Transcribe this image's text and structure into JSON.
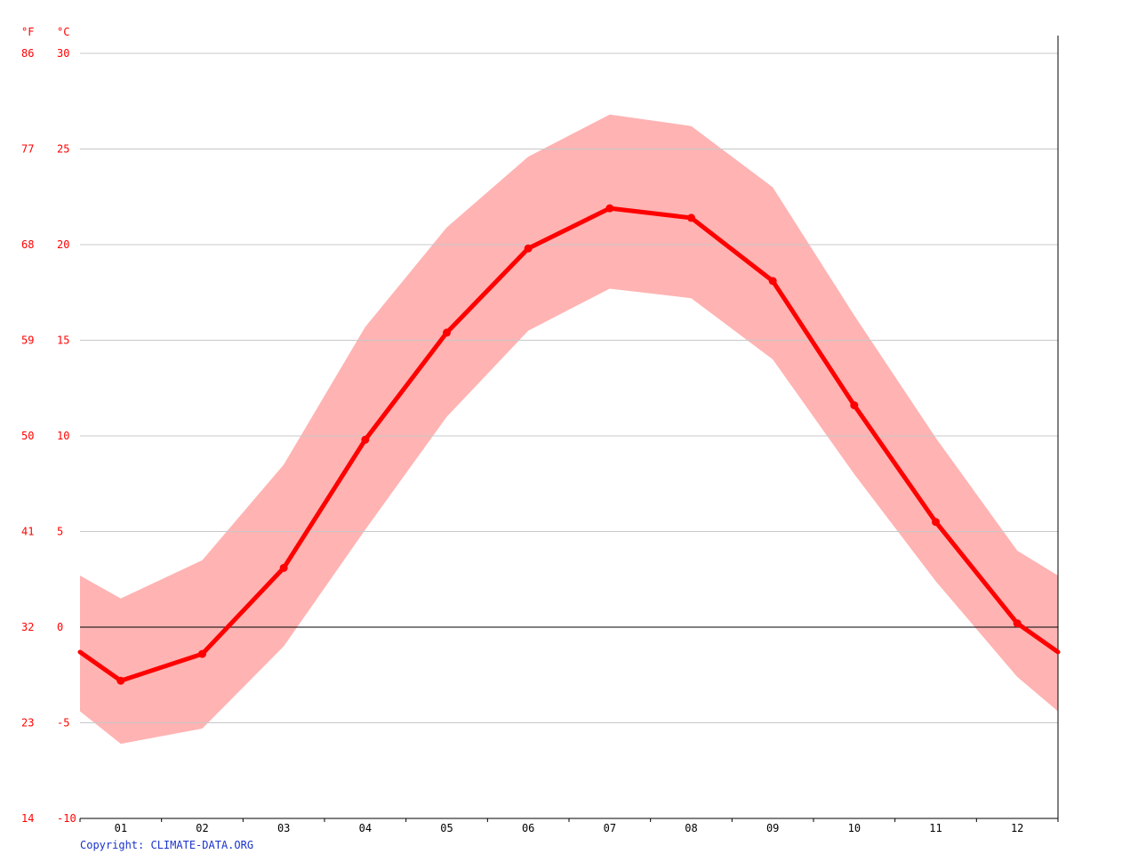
{
  "units": {
    "fahrenheit": "°F",
    "celsius": "°C"
  },
  "copyright": "Copyright: CLIMATE-DATA.ORG",
  "colors": {
    "line": "#ff0000",
    "band": "#ffb3b3",
    "grid": "#c8c8c8",
    "zero": "#000000",
    "copyright": "#1a33cc"
  },
  "chart_data": {
    "type": "line",
    "categories": [
      "01",
      "02",
      "03",
      "04",
      "05",
      "06",
      "07",
      "08",
      "09",
      "10",
      "11",
      "12"
    ],
    "y_ticks_c": [
      "30",
      "25",
      "20",
      "15",
      "10",
      "5",
      "0",
      "-5",
      "-10"
    ],
    "y_ticks_f": [
      "86",
      "77",
      "68",
      "59",
      "50",
      "41",
      "32",
      "23",
      "14"
    ],
    "ylim": [
      -10,
      30
    ],
    "grid": true,
    "series": [
      {
        "values": [
          -2.8,
          -1.4,
          3.1,
          9.8,
          15.4,
          19.8,
          21.9,
          21.4,
          18.1,
          11.6,
          5.5,
          0.2
        ]
      }
    ],
    "band": {
      "high": [
        1.5,
        3.5,
        8.5,
        15.7,
        20.9,
        24.6,
        26.8,
        26.2,
        23.0,
        16.3,
        9.9,
        4.0
      ],
      "low": [
        -6.1,
        -5.3,
        -1.0,
        5.1,
        11.0,
        15.5,
        17.7,
        17.2,
        14.0,
        8.0,
        2.4,
        -2.6
      ]
    },
    "edge_values": {
      "mean": [
        -1.3,
        -1.3
      ],
      "high": [
        2.7,
        2.7
      ],
      "low": [
        -4.4,
        -4.4
      ]
    }
  }
}
